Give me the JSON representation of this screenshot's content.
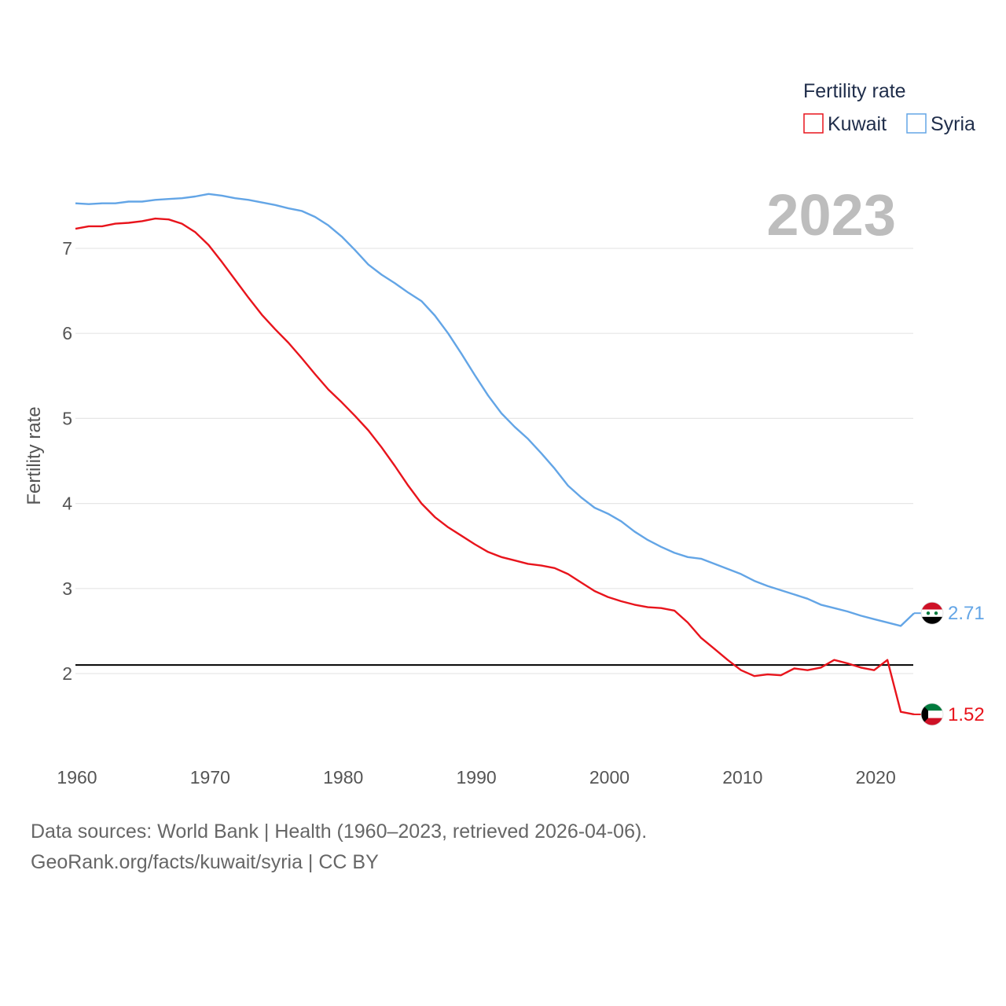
{
  "chart_data": {
    "type": "line",
    "title": "",
    "year_label": "2023",
    "xlabel": "",
    "ylabel": "Fertility rate",
    "xlim": [
      1960,
      2023
    ],
    "ylim": [
      1.0,
      8.0
    ],
    "x_ticks": [
      "1960",
      "1970",
      "1980",
      "1990",
      "2000",
      "2010",
      "2020"
    ],
    "y_ticks": [
      "2",
      "3",
      "4",
      "5",
      "6",
      "7"
    ],
    "grid": true,
    "reference_line": 2.1,
    "legend": {
      "title": "Fertility rate",
      "position": "top-right",
      "items": [
        "Kuwait",
        "Syria"
      ]
    },
    "x": [
      1960,
      1961,
      1962,
      1963,
      1964,
      1965,
      1966,
      1967,
      1968,
      1969,
      1970,
      1971,
      1972,
      1973,
      1974,
      1975,
      1976,
      1977,
      1978,
      1979,
      1980,
      1981,
      1982,
      1983,
      1984,
      1985,
      1986,
      1987,
      1988,
      1989,
      1990,
      1991,
      1992,
      1993,
      1994,
      1995,
      1996,
      1997,
      1998,
      1999,
      2000,
      2001,
      2002,
      2003,
      2004,
      2005,
      2006,
      2007,
      2008,
      2009,
      2010,
      2011,
      2012,
      2013,
      2014,
      2015,
      2016,
      2017,
      2018,
      2019,
      2020,
      2021,
      2022,
      2023
    ],
    "series": [
      {
        "name": "Kuwait",
        "color": "#e8141c",
        "end_label": "1.52",
        "flag": "kuwait",
        "values": [
          7.23,
          7.26,
          7.26,
          7.29,
          7.3,
          7.32,
          7.35,
          7.34,
          7.29,
          7.19,
          7.04,
          6.84,
          6.63,
          6.42,
          6.22,
          6.05,
          5.89,
          5.71,
          5.52,
          5.34,
          5.19,
          5.03,
          4.86,
          4.66,
          4.44,
          4.21,
          4.0,
          3.84,
          3.72,
          3.62,
          3.52,
          3.43,
          3.37,
          3.33,
          3.29,
          3.27,
          3.24,
          3.17,
          3.07,
          2.97,
          2.9,
          2.85,
          2.81,
          2.78,
          2.77,
          2.74,
          2.6,
          2.42,
          2.29,
          2.16,
          2.04,
          1.97,
          1.99,
          1.98,
          2.06,
          2.04,
          2.07,
          2.16,
          2.12,
          2.07,
          2.04,
          2.16,
          1.55,
          1.52
        ]
      },
      {
        "name": "Syria",
        "color": "#63a5e6",
        "end_label": "2.71",
        "flag": "syria",
        "values": [
          7.53,
          7.52,
          7.53,
          7.53,
          7.55,
          7.55,
          7.57,
          7.58,
          7.59,
          7.61,
          7.64,
          7.62,
          7.59,
          7.57,
          7.54,
          7.51,
          7.47,
          7.44,
          7.37,
          7.27,
          7.14,
          6.98,
          6.81,
          6.69,
          6.59,
          6.48,
          6.38,
          6.21,
          6.0,
          5.76,
          5.51,
          5.27,
          5.06,
          4.9,
          4.76,
          4.59,
          4.41,
          4.21,
          4.07,
          3.95,
          3.88,
          3.79,
          3.67,
          3.57,
          3.49,
          3.42,
          3.37,
          3.35,
          3.29,
          3.23,
          3.17,
          3.09,
          3.03,
          2.98,
          2.93,
          2.88,
          2.81,
          2.77,
          2.73,
          2.68,
          2.64,
          2.6,
          2.56,
          2.71
        ]
      }
    ]
  },
  "footer": {
    "sources": "Data sources: World Bank | Health (1960–2023, retrieved 2026-04-06).",
    "link": "GeoRank.org/facts/kuwait/syria | CC BY"
  }
}
